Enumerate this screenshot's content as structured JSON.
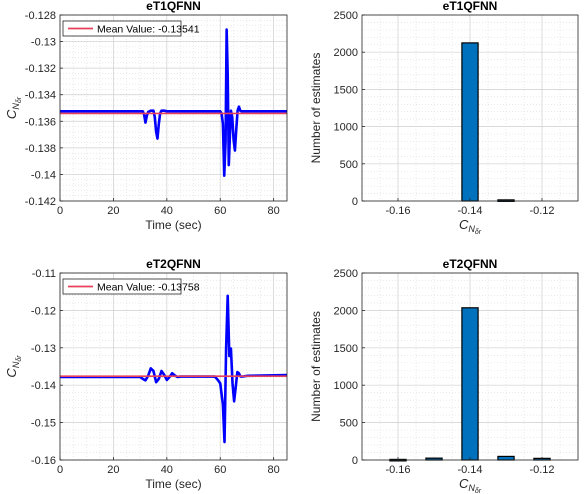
{
  "chart_data": [
    {
      "type": "line",
      "title": "eT1QFNN",
      "xlabel": "Time (sec)",
      "ylabel": "C_{N_{δr}}",
      "xlim": [
        0,
        85
      ],
      "ylim": [
        -0.142,
        -0.128
      ],
      "xticks": [
        0,
        20,
        40,
        60,
        80
      ],
      "yticks": [
        -0.128,
        -0.13,
        -0.132,
        -0.134,
        -0.136,
        -0.138,
        -0.14,
        -0.142
      ],
      "xtick_labels": [
        "0",
        "20",
        "40",
        "60",
        "80"
      ],
      "ytick_labels": [
        "-0.128",
        "-0.13",
        "-0.132",
        "-0.134",
        "-0.136",
        "-0.138",
        "-0.14",
        "-0.142"
      ],
      "grid": true,
      "legend": {
        "placement": "top-left",
        "entries": [
          "Mean Value: -0.13541"
        ]
      },
      "mean_value": -0.13541,
      "series": [
        {
          "color": "#0000ff",
          "x": [
            0,
            31,
            31.5,
            32,
            32.5,
            33,
            34,
            35,
            35.5,
            36,
            36.5,
            37,
            37.5,
            38,
            39,
            40,
            60,
            60.5,
            61,
            61.5,
            62,
            62.4,
            62.8,
            63.2,
            63.6,
            64,
            64.5,
            65,
            65.5,
            66,
            66.5,
            67,
            67.5,
            68,
            69,
            70,
            85
          ],
          "y": [
            -0.13525,
            -0.13525,
            -0.1355,
            -0.1361,
            -0.1356,
            -0.1353,
            -0.1352,
            -0.1352,
            -0.1357,
            -0.1368,
            -0.1373,
            -0.1362,
            -0.1354,
            -0.1352,
            -0.1352,
            -0.13525,
            -0.13525,
            -0.1354,
            -0.1362,
            -0.1401,
            -0.1375,
            -0.1291,
            -0.1325,
            -0.1393,
            -0.1372,
            -0.1352,
            -0.1357,
            -0.1374,
            -0.1382,
            -0.1366,
            -0.1352,
            -0.1349,
            -0.1352,
            -0.13525,
            -0.13525,
            -0.13525,
            -0.13525
          ]
        },
        {
          "name": "Mean Value: -0.13541",
          "color": "#e8405a",
          "x": [
            0,
            85
          ],
          "y": [
            -0.13541,
            -0.13541
          ]
        }
      ]
    },
    {
      "type": "bar",
      "title": "eT1QFNN",
      "xlabel": "C_{N_{δr}}",
      "ylabel": "Number of estimates",
      "xlim": [
        -0.17,
        -0.11
      ],
      "ylim": [
        0,
        2500
      ],
      "xticks": [
        -0.16,
        -0.14,
        -0.12
      ],
      "yticks": [
        0,
        500,
        1000,
        1500,
        2000,
        2500
      ],
      "xtick_labels": [
        "-0.16",
        "-0.14",
        "-0.12"
      ],
      "ytick_labels": [
        "0",
        "500",
        "1000",
        "1500",
        "2000",
        "2500"
      ],
      "grid": true,
      "bin_width": 0.005,
      "bar_color": "#0072bd",
      "bins": [
        -0.16,
        -0.155,
        -0.15,
        -0.145,
        -0.14,
        -0.135,
        -0.13,
        -0.125,
        -0.12
      ],
      "counts": [
        0,
        0,
        0,
        0,
        2125,
        0,
        15,
        0,
        0
      ]
    },
    {
      "type": "line",
      "title": "eT2QFNN",
      "xlabel": "Time (sec)",
      "ylabel": "C_{N_{δr}}",
      "xlim": [
        0,
        85
      ],
      "ylim": [
        -0.16,
        -0.11
      ],
      "xticks": [
        0,
        20,
        40,
        60,
        80
      ],
      "yticks": [
        -0.11,
        -0.12,
        -0.13,
        -0.14,
        -0.15,
        -0.16
      ],
      "xtick_labels": [
        "0",
        "20",
        "40",
        "60",
        "80"
      ],
      "ytick_labels": [
        "-0.11",
        "-0.12",
        "-0.13",
        "-0.14",
        "-0.15",
        "-0.16"
      ],
      "grid": true,
      "legend": {
        "placement": "top-left",
        "entries": [
          "Mean Value: -0.13758"
        ]
      },
      "mean_value": -0.13758,
      "series": [
        {
          "color": "#0000ff",
          "x": [
            0,
            30,
            31,
            32,
            33,
            34,
            35,
            36,
            37,
            38,
            39,
            40,
            41,
            42,
            43,
            44,
            45,
            58,
            59,
            60,
            61,
            61.6,
            62.2,
            62.8,
            63.4,
            64,
            64.6,
            65.2,
            65.8,
            66.4,
            67,
            67.5,
            68,
            70,
            85
          ],
          "y": [
            -0.1378,
            -0.1378,
            -0.1383,
            -0.1387,
            -0.1375,
            -0.1355,
            -0.1362,
            -0.1392,
            -0.1383,
            -0.1362,
            -0.1372,
            -0.1386,
            -0.1378,
            -0.1368,
            -0.1374,
            -0.1378,
            -0.1377,
            -0.1377,
            -0.1385,
            -0.1395,
            -0.1452,
            -0.1552,
            -0.1302,
            -0.1161,
            -0.1322,
            -0.1302,
            -0.1395,
            -0.1443,
            -0.1405,
            -0.1365,
            -0.1368,
            -0.1376,
            -0.1377,
            -0.1375,
            -0.1373
          ]
        },
        {
          "name": "Mean Value: -0.13758",
          "color": "#e8405a",
          "x": [
            0,
            85
          ],
          "y": [
            -0.13758,
            -0.13758
          ]
        }
      ]
    },
    {
      "type": "bar",
      "title": "eT2QFNN",
      "xlabel": "C_{N_{δr}}",
      "ylabel": "Number of estimates",
      "xlim": [
        -0.17,
        -0.11
      ],
      "ylim": [
        0,
        2500
      ],
      "xticks": [
        -0.16,
        -0.14,
        -0.12
      ],
      "yticks": [
        0,
        500,
        1000,
        1500,
        2000,
        2500
      ],
      "xtick_labels": [
        "-0.16",
        "-0.14",
        "-0.12"
      ],
      "ytick_labels": [
        "0",
        "500",
        "1000",
        "1500",
        "2000",
        "2500"
      ],
      "grid": true,
      "bin_width": 0.005,
      "bar_color": "#0072bd",
      "bins": [
        -0.16,
        -0.155,
        -0.15,
        -0.145,
        -0.14,
        -0.135,
        -0.13,
        -0.125,
        -0.12
      ],
      "counts": [
        8,
        0,
        25,
        0,
        2035,
        0,
        48,
        0,
        22
      ]
    }
  ]
}
